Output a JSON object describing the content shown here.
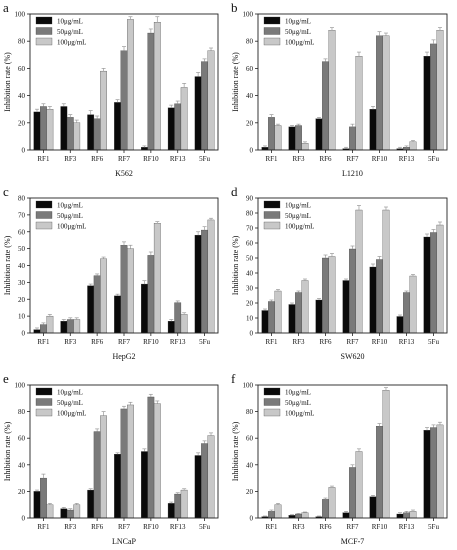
{
  "series_colors": [
    "#0a0a0a",
    "#7a7a7a",
    "#c8c8c8"
  ],
  "error_color": "#999999",
  "chart_data": [
    {
      "panel": "a",
      "type": "bar",
      "cell_line": "K562",
      "ylabel": "Inhibition rate (%)",
      "ylim": [
        0,
        100
      ],
      "yticks": [
        0,
        20,
        40,
        60,
        80,
        100
      ],
      "categories": [
        "RF1",
        "RF3",
        "RF6",
        "RF7",
        "RF10",
        "RF13",
        "5Fu"
      ],
      "series": [
        {
          "name": "10μg/mL",
          "values": [
            28,
            32,
            26,
            35,
            2,
            31,
            54
          ],
          "errors": [
            2,
            2,
            3,
            2,
            1,
            2,
            3
          ]
        },
        {
          "name": "50μg/mL",
          "values": [
            32,
            24,
            23,
            73,
            86,
            34,
            65
          ],
          "errors": [
            2,
            2,
            2,
            3,
            3,
            2,
            2
          ]
        },
        {
          "name": "100μg/mL",
          "values": [
            30,
            20,
            58,
            96,
            94,
            46,
            73
          ],
          "errors": [
            2,
            2,
            2,
            2,
            4,
            3,
            2
          ]
        }
      ],
      "legend": "top-left"
    },
    {
      "panel": "b",
      "type": "bar",
      "cell_line": "L1210",
      "ylabel": "Inhibition rate (%)",
      "ylim": [
        0,
        100
      ],
      "yticks": [
        0,
        20,
        40,
        60,
        80,
        100
      ],
      "categories": [
        "RF1",
        "RF3",
        "RF6",
        "RF7",
        "RF10",
        "RF13",
        "5Fu"
      ],
      "series": [
        {
          "name": "10μg/mL",
          "values": [
            2,
            17,
            23,
            1,
            30,
            1,
            69
          ],
          "errors": [
            1,
            1,
            1,
            1,
            2,
            1,
            3
          ]
        },
        {
          "name": "50μg/mL",
          "values": [
            24,
            18,
            65,
            17,
            84,
            2,
            78
          ],
          "errors": [
            2,
            1,
            2,
            2,
            3,
            1,
            3
          ]
        },
        {
          "name": "100μg/mL",
          "values": [
            18,
            5,
            88,
            69,
            84,
            6,
            88
          ],
          "errors": [
            1,
            1,
            2,
            3,
            2,
            1,
            2
          ]
        }
      ],
      "legend": "top-left"
    },
    {
      "panel": "c",
      "type": "bar",
      "cell_line": "HepG2",
      "ylabel": "Inhibition rate (%)",
      "ylim": [
        0,
        80
      ],
      "yticks": [
        0,
        10,
        20,
        30,
        40,
        50,
        60,
        70,
        80
      ],
      "categories": [
        "RF1",
        "RF3",
        "RF6",
        "RF7",
        "RF10",
        "RF13",
        "5Fu"
      ],
      "series": [
        {
          "name": "10μg/mL",
          "values": [
            2,
            7,
            28,
            22,
            29,
            7,
            58
          ],
          "errors": [
            1,
            1,
            1,
            1,
            2,
            1,
            2
          ]
        },
        {
          "name": "50μg/mL",
          "values": [
            5,
            8,
            34,
            52,
            46,
            18,
            61
          ],
          "errors": [
            1,
            1,
            1,
            2,
            2,
            1,
            2
          ]
        },
        {
          "name": "100μg/mL",
          "values": [
            10,
            8,
            44,
            50,
            65,
            11,
            67
          ],
          "errors": [
            1,
            1,
            1,
            2,
            1,
            1,
            1
          ]
        }
      ],
      "legend": "top-left"
    },
    {
      "panel": "d",
      "type": "bar",
      "cell_line": "SW620",
      "ylabel": "Inhibition rate (%)",
      "ylim": [
        0,
        90
      ],
      "yticks": [
        0,
        10,
        20,
        30,
        40,
        50,
        60,
        70,
        80,
        90
      ],
      "categories": [
        "RF1",
        "RF3",
        "RF6",
        "RF7",
        "RF10",
        "RF13",
        "5Fu"
      ],
      "series": [
        {
          "name": "10μg/mL",
          "values": [
            15,
            19,
            22,
            35,
            44,
            11,
            64
          ],
          "errors": [
            1,
            1,
            1,
            1,
            2,
            1,
            2
          ]
        },
        {
          "name": "50μg/mL",
          "values": [
            21,
            27,
            50,
            56,
            49,
            27,
            67
          ],
          "errors": [
            1,
            1,
            2,
            2,
            2,
            1,
            2
          ]
        },
        {
          "name": "100μg/mL",
          "values": [
            28,
            35,
            51,
            82,
            82,
            38,
            72
          ],
          "errors": [
            1,
            1,
            2,
            3,
            2,
            1,
            2
          ]
        }
      ],
      "legend": "top-left"
    },
    {
      "panel": "e",
      "type": "bar",
      "cell_line": "LNCaP",
      "ylabel": "Inhibition rate (%)",
      "ylim": [
        0,
        100
      ],
      "yticks": [
        0,
        20,
        40,
        60,
        80,
        100
      ],
      "categories": [
        "RF1",
        "RF3",
        "RF6",
        "RF7",
        "RF10",
        "RF13",
        "5Fu"
      ],
      "series": [
        {
          "name": "10μg/mL",
          "values": [
            20,
            7,
            21,
            48,
            50,
            11,
            47
          ],
          "errors": [
            1,
            1,
            1,
            1,
            2,
            1,
            2
          ]
        },
        {
          "name": "50μg/mL",
          "values": [
            30,
            6,
            65,
            82,
            91,
            18,
            56
          ],
          "errors": [
            3,
            1,
            2,
            2,
            2,
            1,
            2
          ]
        },
        {
          "name": "100μg/mL",
          "values": [
            10,
            10,
            77,
            85,
            86,
            21,
            62
          ],
          "errors": [
            1,
            1,
            3,
            2,
            2,
            1,
            2
          ]
        }
      ],
      "legend": "top-left"
    },
    {
      "panel": "f",
      "type": "bar",
      "cell_line": "MCF-7",
      "ylabel": "Inhibition rate (%)",
      "ylim": [
        0,
        100
      ],
      "yticks": [
        0,
        20,
        40,
        60,
        80,
        100
      ],
      "categories": [
        "RF1",
        "RF3",
        "RF6",
        "RF7",
        "RF10",
        "RF13",
        "5Fu"
      ],
      "series": [
        {
          "name": "10μg/mL",
          "values": [
            1,
            2,
            1,
            4,
            16,
            3,
            66
          ],
          "errors": [
            0.5,
            0.5,
            0.5,
            1,
            1,
            1,
            2
          ]
        },
        {
          "name": "50μg/mL",
          "values": [
            5,
            3,
            14,
            38,
            69,
            4,
            68
          ],
          "errors": [
            1,
            0.5,
            1,
            2,
            2,
            1,
            2
          ]
        },
        {
          "name": "100μg/mL",
          "values": [
            10,
            4,
            23,
            50,
            96,
            5,
            70
          ],
          "errors": [
            1,
            0.5,
            1,
            2,
            2,
            1,
            2
          ]
        }
      ],
      "legend": "top-left"
    }
  ]
}
